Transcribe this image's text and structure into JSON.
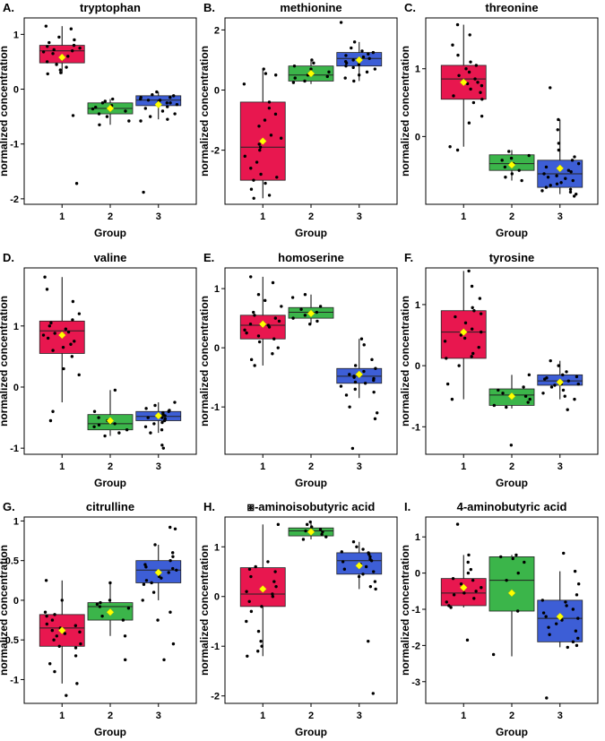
{
  "figure": {
    "colors": {
      "group1": "#e8174f",
      "group2": "#3bb54a",
      "group3": "#3d5ed6",
      "mean_marker": "#ffff00",
      "points": "#000000"
    }
  },
  "chart_data": [
    {
      "type": "boxplot",
      "letter": "A.",
      "title": "tryptophan",
      "xlabel": "Group",
      "ylabel": "normalized concentration",
      "categories": [
        "1",
        "2",
        "3"
      ],
      "yticks": [
        1,
        0,
        -1,
        -2
      ],
      "ylim": [
        -2.1,
        1.3
      ],
      "boxes": [
        {
          "group": "1",
          "min": 0.28,
          "q1": 0.48,
          "median": 0.7,
          "q3": 0.8,
          "max": 1.15,
          "mean": 0.58
        },
        {
          "group": "2",
          "min": -0.65,
          "q1": -0.45,
          "median": -0.35,
          "q3": -0.25,
          "max": -0.18,
          "mean": -0.35
        },
        {
          "group": "3",
          "min": -0.55,
          "q1": -0.3,
          "median": -0.2,
          "q3": -0.12,
          "max": -0.05,
          "mean": -0.28
        }
      ],
      "points": [
        {
          "group": "1",
          "y": [
            1.1,
            1.15,
            0.95,
            0.9,
            0.85,
            0.8,
            0.78,
            0.75,
            0.72,
            0.7,
            0.68,
            0.65,
            0.6,
            0.55,
            0.5,
            0.45,
            0.4,
            0.35,
            0.3,
            0.28,
            -0.48,
            -1.72
          ]
        },
        {
          "group": "2",
          "y": [
            -0.18,
            -0.22,
            -0.25,
            -0.3,
            -0.33,
            -0.36,
            -0.4,
            -0.45,
            -0.5,
            -0.58,
            -0.65
          ]
        },
        {
          "group": "3",
          "y": [
            -0.05,
            -0.1,
            -0.12,
            -0.15,
            -0.15,
            -0.18,
            -0.2,
            -0.2,
            -0.22,
            -0.25,
            -0.25,
            -0.28,
            -0.3,
            -0.32,
            -0.35,
            -0.4,
            -0.45,
            -0.5,
            -0.55,
            -0.58,
            -1.88
          ]
        }
      ]
    },
    {
      "type": "boxplot",
      "letter": "B.",
      "title": "methionine",
      "xlabel": "Group",
      "ylabel": "normalized concentration",
      "categories": [
        "1",
        "2",
        "3"
      ],
      "yticks": [
        2,
        0,
        -2
      ],
      "ylim": [
        -3.8,
        2.4
      ],
      "boxes": [
        {
          "group": "1",
          "min": -3.6,
          "q1": -3.0,
          "median": -1.9,
          "q3": -0.4,
          "max": 0.7,
          "mean": -1.7
        },
        {
          "group": "2",
          "min": 0.2,
          "q1": 0.3,
          "median": 0.5,
          "q3": 0.8,
          "max": 1.0,
          "mean": 0.55
        },
        {
          "group": "3",
          "min": 0.3,
          "q1": 0.8,
          "median": 1.05,
          "q3": 1.25,
          "max": 1.6,
          "mean": 1.0
        }
      ],
      "points": [
        {
          "group": "1",
          "y": [
            0.7,
            0.55,
            0.5,
            0.2,
            -0.4,
            -0.6,
            -0.8,
            -1.0,
            -1.2,
            -1.5,
            -1.6,
            -1.8,
            -1.9,
            -2.0,
            -2.2,
            -2.4,
            -2.6,
            -2.8,
            -2.9,
            -3.0,
            -3.1,
            -3.3,
            -3.5,
            -3.6
          ]
        },
        {
          "group": "2",
          "y": [
            1.0,
            0.9,
            0.8,
            0.7,
            0.6,
            0.5,
            0.45,
            0.4,
            0.3,
            0.25
          ]
        },
        {
          "group": "3",
          "y": [
            2.25,
            1.6,
            1.4,
            1.3,
            1.25,
            1.2,
            1.15,
            1.1,
            1.05,
            1.0,
            1.0,
            0.95,
            0.9,
            0.85,
            0.8,
            0.75,
            0.7,
            0.6,
            0.5,
            0.4,
            0.3
          ]
        }
      ]
    },
    {
      "type": "boxplot",
      "letter": "C.",
      "title": "threonine",
      "xlabel": "Group",
      "ylabel": "normalized concentration",
      "categories": [
        "1",
        "2",
        "3"
      ],
      "yticks": [
        1,
        0
      ],
      "ylim": [
        -1.0,
        1.75
      ],
      "boxes": [
        {
          "group": "1",
          "min": -0.15,
          "q1": 0.55,
          "median": 0.85,
          "q3": 1.05,
          "max": 1.65,
          "mean": 0.8
        },
        {
          "group": "2",
          "min": -0.65,
          "q1": -0.5,
          "median": -0.4,
          "q3": -0.27,
          "max": -0.2,
          "mean": -0.42
        },
        {
          "group": "3",
          "min": -0.85,
          "q1": -0.75,
          "median": -0.55,
          "q3": -0.35,
          "max": 0.25,
          "mean": -0.47
        }
      ],
      "points": [
        {
          "group": "1",
          "y": [
            1.65,
            1.5,
            1.35,
            1.2,
            1.1,
            1.05,
            1.0,
            0.95,
            0.9,
            0.85,
            0.8,
            0.78,
            0.75,
            0.7,
            0.65,
            0.6,
            0.55,
            0.5,
            0.3,
            0.2,
            -0.15,
            -0.2
          ]
        },
        {
          "group": "2",
          "y": [
            -0.22,
            -0.28,
            -0.32,
            -0.35,
            -0.4,
            -0.45,
            -0.5,
            -0.55,
            -0.6,
            -0.65
          ]
        },
        {
          "group": "3",
          "y": [
            0.72,
            0.25,
            0.1,
            -0.1,
            -0.2,
            -0.3,
            -0.35,
            -0.4,
            -0.45,
            -0.5,
            -0.52,
            -0.55,
            -0.58,
            -0.6,
            -0.62,
            -0.65,
            -0.68,
            -0.7,
            -0.72,
            -0.75,
            -0.78,
            -0.8,
            -0.82,
            -0.85,
            -0.88
          ]
        }
      ]
    },
    {
      "type": "boxplot",
      "letter": "D.",
      "title": "valine",
      "xlabel": "Group",
      "ylabel": "normalized concentration",
      "categories": [
        "1",
        "2",
        "3"
      ],
      "yticks": [
        1,
        0,
        -1
      ],
      "ylim": [
        -1.1,
        1.95
      ],
      "boxes": [
        {
          "group": "1",
          "min": -0.25,
          "q1": 0.55,
          "median": 0.92,
          "q3": 1.08,
          "max": 1.8,
          "mean": 0.85
        },
        {
          "group": "2",
          "min": -0.8,
          "q1": -0.7,
          "median": -0.6,
          "q3": -0.45,
          "max": -0.05,
          "mean": -0.55
        },
        {
          "group": "3",
          "min": -0.75,
          "q1": -0.55,
          "median": -0.48,
          "q3": -0.4,
          "max": -0.25,
          "mean": -0.47
        }
      ],
      "points": [
        {
          "group": "1",
          "y": [
            1.8,
            1.6,
            1.4,
            1.2,
            1.1,
            1.05,
            1.0,
            0.95,
            0.9,
            0.88,
            0.85,
            0.8,
            0.75,
            0.7,
            0.65,
            0.6,
            0.5,
            0.3,
            0.2,
            -0.4,
            -0.55
          ]
        },
        {
          "group": "2",
          "y": [
            -0.05,
            -0.4,
            -0.5,
            -0.55,
            -0.6,
            -0.62,
            -0.65,
            -0.7,
            -0.75,
            -0.8
          ]
        },
        {
          "group": "3",
          "y": [
            -0.25,
            -0.3,
            -0.35,
            -0.38,
            -0.4,
            -0.42,
            -0.45,
            -0.47,
            -0.48,
            -0.5,
            -0.5,
            -0.52,
            -0.55,
            -0.58,
            -0.6,
            -0.65,
            -0.7,
            -0.75,
            -0.95,
            -1.0
          ]
        }
      ]
    },
    {
      "type": "boxplot",
      "letter": "E.",
      "title": "homoserine",
      "xlabel": "Group",
      "ylabel": "normalized concentration",
      "categories": [
        "1",
        "2",
        "3"
      ],
      "yticks": [
        1,
        0,
        -1
      ],
      "ylim": [
        -1.8,
        1.35
      ],
      "boxes": [
        {
          "group": "1",
          "min": -0.3,
          "q1": 0.15,
          "median": 0.38,
          "q3": 0.55,
          "max": 1.2,
          "mean": 0.4
        },
        {
          "group": "2",
          "min": 0.4,
          "q1": 0.5,
          "median": 0.6,
          "q3": 0.68,
          "max": 0.9,
          "mean": 0.58
        },
        {
          "group": "3",
          "min": -0.85,
          "q1": -0.6,
          "median": -0.48,
          "q3": -0.35,
          "max": 0.15,
          "mean": -0.45
        }
      ],
      "points": [
        {
          "group": "1",
          "y": [
            1.2,
            1.1,
            0.9,
            0.8,
            0.7,
            0.6,
            0.55,
            0.5,
            0.45,
            0.4,
            0.38,
            0.35,
            0.3,
            0.25,
            0.2,
            0.15,
            0.1,
            0.0,
            -0.1,
            -0.2,
            -0.3
          ]
        },
        {
          "group": "2",
          "y": [
            0.9,
            0.85,
            0.7,
            0.65,
            0.6,
            0.55,
            0.5,
            0.45,
            0.4
          ]
        },
        {
          "group": "3",
          "y": [
            0.15,
            0.05,
            -0.2,
            -0.3,
            -0.35,
            -0.4,
            -0.45,
            -0.48,
            -0.5,
            -0.52,
            -0.55,
            -0.58,
            -0.6,
            -0.65,
            -0.7,
            -0.75,
            -0.8,
            -1.0,
            -1.1,
            -1.2,
            -1.7
          ]
        }
      ]
    },
    {
      "type": "boxplot",
      "letter": "F.",
      "title": "tyrosine",
      "xlabel": "Group",
      "ylabel": "normalized concentration",
      "categories": [
        "1",
        "2",
        "3"
      ],
      "yticks": [
        1,
        0,
        -1
      ],
      "ylim": [
        -1.45,
        1.6
      ],
      "boxes": [
        {
          "group": "1",
          "min": -0.55,
          "q1": 0.12,
          "median": 0.55,
          "q3": 0.9,
          "max": 1.55,
          "mean": 0.55
        },
        {
          "group": "2",
          "min": -0.7,
          "q1": -0.65,
          "median": -0.48,
          "q3": -0.38,
          "max": -0.15,
          "mean": -0.5
        },
        {
          "group": "3",
          "min": -0.55,
          "q1": -0.32,
          "median": -0.25,
          "q3": -0.15,
          "max": 0.08,
          "mean": -0.27
        }
      ],
      "points": [
        {
          "group": "1",
          "y": [
            1.55,
            1.3,
            1.1,
            0.95,
            0.9,
            0.85,
            0.8,
            0.7,
            0.6,
            0.55,
            0.5,
            0.45,
            0.4,
            0.3,
            0.2,
            0.15,
            0.12,
            0.0,
            -0.3,
            -0.55
          ]
        },
        {
          "group": "2",
          "y": [
            -0.15,
            -0.35,
            -0.4,
            -0.45,
            -0.5,
            -0.55,
            -0.6,
            -0.65,
            -0.68,
            -1.3
          ]
        },
        {
          "group": "3",
          "y": [
            0.08,
            0.0,
            -0.1,
            -0.15,
            -0.18,
            -0.2,
            -0.22,
            -0.25,
            -0.27,
            -0.3,
            -0.3,
            -0.32,
            -0.35,
            -0.4,
            -0.45,
            -0.5,
            -0.55,
            -0.72
          ]
        }
      ]
    },
    {
      "type": "boxplot",
      "letter": "G.",
      "title": "citrulline",
      "xlabel": "Group",
      "ylabel": "normalized concentration",
      "categories": [
        "1",
        "2",
        "3"
      ],
      "yticks": [
        1,
        0.5,
        0,
        -0.5,
        -1
      ],
      "ylim": [
        -1.3,
        1.05
      ],
      "boxes": [
        {
          "group": "1",
          "min": -1.05,
          "q1": -0.58,
          "median": -0.35,
          "q3": -0.18,
          "max": 0.25,
          "mean": -0.38
        },
        {
          "group": "2",
          "min": -0.45,
          "q1": -0.25,
          "median": -0.08,
          "q3": -0.03,
          "max": 0.22,
          "mean": -0.15
        },
        {
          "group": "3",
          "min": 0.0,
          "q1": 0.22,
          "median": 0.38,
          "q3": 0.5,
          "max": 0.7,
          "mean": 0.35
        }
      ],
      "points": [
        {
          "group": "1",
          "y": [
            0.25,
            0.0,
            -0.15,
            -0.18,
            -0.2,
            -0.25,
            -0.3,
            -0.32,
            -0.35,
            -0.38,
            -0.4,
            -0.42,
            -0.45,
            -0.5,
            -0.55,
            -0.58,
            -0.6,
            -0.7,
            -0.8,
            -0.9,
            -1.05,
            -1.2
          ]
        },
        {
          "group": "2",
          "y": [
            0.22,
            0.0,
            -0.03,
            -0.05,
            -0.08,
            -0.1,
            -0.2,
            -0.25,
            -0.45,
            -0.75
          ]
        },
        {
          "group": "3",
          "y": [
            0.92,
            0.9,
            0.7,
            0.6,
            0.55,
            0.5,
            0.45,
            0.42,
            0.4,
            0.38,
            0.35,
            0.3,
            0.28,
            0.25,
            0.22,
            0.2,
            0.1,
            0.0,
            -0.15,
            -0.25,
            -0.55,
            -0.75
          ]
        }
      ]
    },
    {
      "type": "boxplot",
      "letter": "H.",
      "title": "⧆-aminoisobutyric acid",
      "xlabel": "Group",
      "ylabel": "normalized concentration",
      "categories": [
        "1",
        "2",
        "3"
      ],
      "yticks": [
        1,
        0,
        -1,
        -2
      ],
      "ylim": [
        -2.15,
        1.6
      ],
      "boxes": [
        {
          "group": "1",
          "min": -1.2,
          "q1": -0.2,
          "median": 0.05,
          "q3": 0.58,
          "max": 1.45,
          "mean": 0.15
        },
        {
          "group": "2",
          "min": 1.15,
          "q1": 1.22,
          "median": 1.32,
          "q3": 1.38,
          "max": 1.5,
          "mean": 1.3
        },
        {
          "group": "3",
          "min": 0.15,
          "q1": 0.45,
          "median": 0.72,
          "q3": 0.88,
          "max": 1.1,
          "mean": 0.62
        }
      ],
      "points": [
        {
          "group": "1",
          "y": [
            1.45,
            0.7,
            0.6,
            0.55,
            0.5,
            0.4,
            0.3,
            0.2,
            0.1,
            0.05,
            0.0,
            -0.1,
            -0.2,
            -0.3,
            -0.5,
            -0.7,
            -0.9,
            -1.0,
            -1.1,
            -1.2
          ]
        },
        {
          "group": "2",
          "y": [
            1.5,
            1.45,
            1.4,
            1.35,
            1.32,
            1.3,
            1.25,
            1.2,
            1.15
          ]
        },
        {
          "group": "3",
          "y": [
            1.1,
            1.0,
            0.95,
            0.9,
            0.88,
            0.85,
            0.8,
            0.75,
            0.72,
            0.7,
            0.65,
            0.6,
            0.55,
            0.5,
            0.45,
            0.4,
            0.3,
            0.2,
            0.15,
            -0.9,
            -1.95
          ]
        }
      ]
    },
    {
      "type": "boxplot",
      "letter": "I.",
      "title": "4-aminobutyric acid",
      "xlabel": "Group",
      "ylabel": "normalized concentration",
      "categories": [
        "1",
        "2",
        "3"
      ],
      "yticks": [
        1,
        0,
        -1,
        -2,
        -3
      ],
      "ylim": [
        -3.6,
        1.55
      ],
      "boxes": [
        {
          "group": "1",
          "min": -0.95,
          "q1": -0.9,
          "median": -0.55,
          "q3": -0.15,
          "max": 0.5,
          "mean": -0.4
        },
        {
          "group": "2",
          "min": -2.3,
          "q1": -1.05,
          "median": -0.2,
          "q3": 0.45,
          "max": 0.5,
          "mean": -0.55
        },
        {
          "group": "3",
          "min": -2.05,
          "q1": -1.9,
          "median": -1.25,
          "q3": -0.75,
          "max": 0.05,
          "mean": -1.2
        }
      ],
      "points": [
        {
          "group": "1",
          "y": [
            1.35,
            0.5,
            0.3,
            0.1,
            0.0,
            -0.15,
            -0.2,
            -0.3,
            -0.4,
            -0.5,
            -0.55,
            -0.6,
            -0.7,
            -0.8,
            -0.9,
            -0.95,
            -1.85
          ]
        },
        {
          "group": "2",
          "y": [
            0.5,
            0.45,
            0.4,
            0.3,
            0.0,
            -0.2,
            -1.05,
            -2.25
          ]
        },
        {
          "group": "3",
          "y": [
            0.55,
            0.05,
            -0.3,
            -0.6,
            -0.75,
            -0.8,
            -0.9,
            -1.0,
            -1.1,
            -1.2,
            -1.25,
            -1.3,
            -1.4,
            -1.5,
            -1.6,
            -1.7,
            -1.8,
            -1.9,
            -2.0,
            -2.05,
            -3.45
          ]
        }
      ]
    }
  ]
}
